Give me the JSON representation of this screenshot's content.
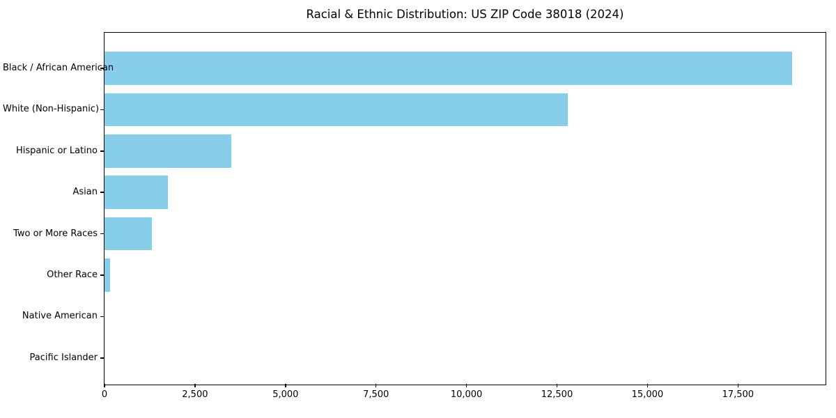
{
  "chart_data": {
    "type": "bar",
    "orientation": "horizontal",
    "title": "Racial & Ethnic Distribution: US ZIP Code 38018 (2024)",
    "categories": [
      "Black / African American",
      "White (Non-Hispanic)",
      "Hispanic or Latino",
      "Asian",
      "Two or More Races",
      "Other Race",
      "Native American",
      "Pacific Islander"
    ],
    "values": [
      19000,
      12800,
      3500,
      1750,
      1300,
      150,
      0,
      0
    ],
    "xlabel": "",
    "ylabel": "",
    "xlim": [
      0,
      19900
    ],
    "xticks": [
      0,
      2500,
      5000,
      7500,
      10000,
      12500,
      15000,
      17500
    ],
    "xtick_labels": [
      "0",
      "2,500",
      "5,000",
      "7,500",
      "10,000",
      "12,500",
      "15,000",
      "17,500"
    ],
    "grid": false,
    "legend": null,
    "bar_color": "#87CEEB",
    "spine_color": "#000000",
    "text_color": "#000000",
    "background_color": "#ffffff"
  }
}
